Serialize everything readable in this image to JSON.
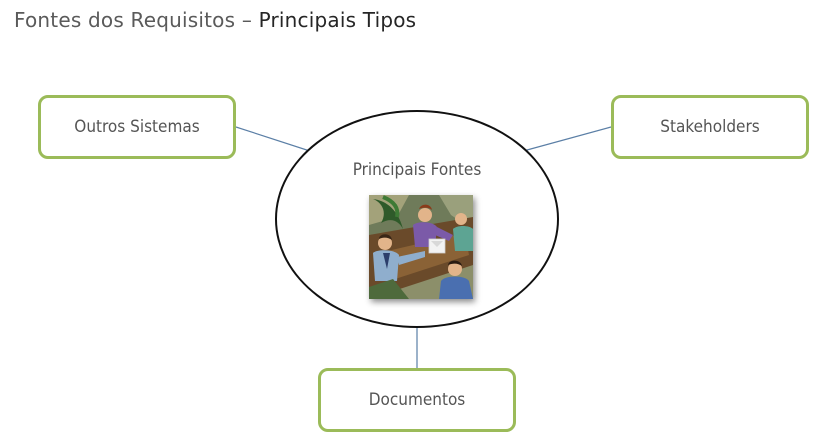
{
  "title": {
    "prefix": "Fontes dos Requisitos",
    "separator": "–",
    "emphasis": "Principais Tipos"
  },
  "diagram": {
    "center": {
      "label": "Principais Fontes",
      "image": "meeting-clipart"
    },
    "nodes": [
      {
        "id": "outros",
        "label": "Outros Sistemas"
      },
      {
        "id": "stake",
        "label": "Stakeholders"
      },
      {
        "id": "docs",
        "label": "Documentos"
      }
    ]
  },
  "colors": {
    "node_border": "#9bbb59",
    "connector": "#5b7fa6",
    "ellipse_border": "#111111"
  }
}
